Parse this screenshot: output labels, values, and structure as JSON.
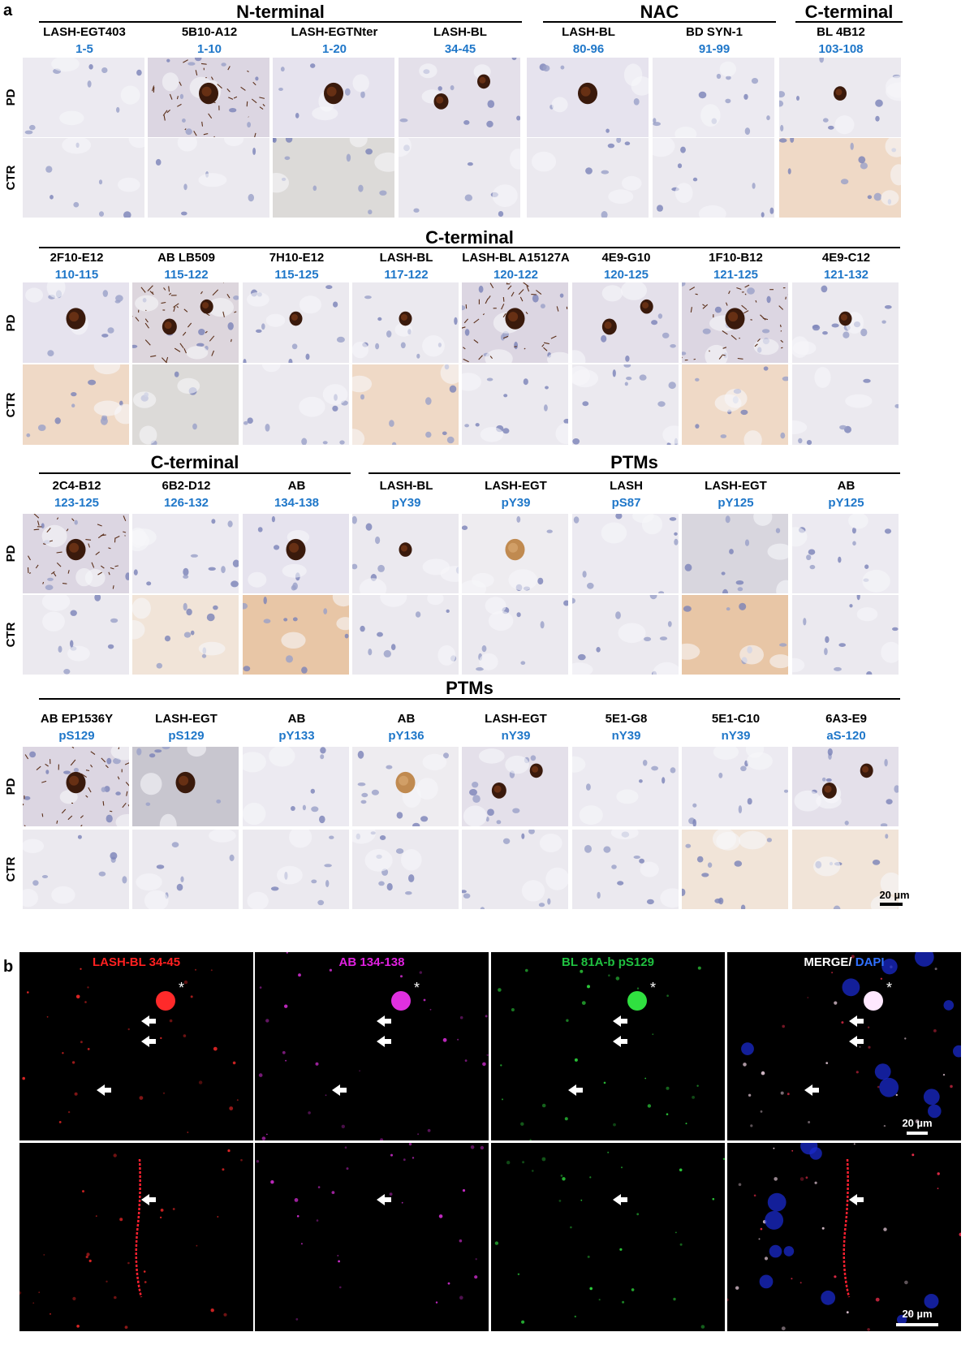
{
  "panel_a": {
    "letter": "a",
    "row_labels": {
      "pd": "PD",
      "ctr": "CTR"
    },
    "blocks": [
      {
        "groups": [
          {
            "title": "N-terminal",
            "span": [
              0,
              3
            ]
          },
          {
            "title": "NAC",
            "span": [
              4,
              5
            ]
          },
          {
            "title": "C-terminal",
            "span": [
              6,
              6
            ]
          }
        ],
        "columns": [
          {
            "name": "LASH-EGT403",
            "epitope": "1-5",
            "pd": "none",
            "ctr": "light"
          },
          {
            "name": "5B10-A12",
            "epitope": "1-10",
            "pd": "body-neurites",
            "ctr": "light"
          },
          {
            "name": "LASH-EGTNter",
            "epitope": "1-20",
            "pd": "body",
            "ctr": "grey"
          },
          {
            "name": "LASH-BL",
            "epitope": "34-45",
            "pd": "multi",
            "ctr": "light"
          },
          {
            "name": "LASH-BL",
            "epitope": "80-96",
            "pd": "body",
            "ctr": "light"
          },
          {
            "name": "BD SYN-1",
            "epitope": "91-99",
            "pd": "none",
            "ctr": "light"
          },
          {
            "name": "BL 4B12",
            "epitope": "103-108",
            "pd": "body-small",
            "ctr": "tan"
          }
        ]
      },
      {
        "groups": [
          {
            "title": "C-terminal",
            "span": [
              0,
              7
            ]
          }
        ],
        "columns": [
          {
            "name": "2F10-E12",
            "epitope": "110-115",
            "pd": "body",
            "ctr": "tan"
          },
          {
            "name": "AB LB509",
            "epitope": "115-122",
            "pd": "multi-neurites",
            "ctr": "grey"
          },
          {
            "name": "7H10-E12",
            "epitope": "115-125",
            "pd": "body-small",
            "ctr": "light"
          },
          {
            "name": "LASH-BL",
            "epitope": "117-122",
            "pd": "body-small",
            "ctr": "tan"
          },
          {
            "name": "LASH-BL A15127A",
            "epitope": "120-122",
            "pd": "body-neurites",
            "ctr": "light"
          },
          {
            "name": "4E9-G10",
            "epitope": "120-125",
            "pd": "multi",
            "ctr": "light"
          },
          {
            "name": "1F10-B12",
            "epitope": "121-125",
            "pd": "body-neurites",
            "ctr": "tan"
          },
          {
            "name": "4E9-C12",
            "epitope": "121-132",
            "pd": "body-small",
            "ctr": "light"
          }
        ]
      },
      {
        "groups": [
          {
            "title": "C-terminal",
            "span": [
              0,
              2
            ]
          },
          {
            "title": "PTMs",
            "span": [
              3,
              7
            ]
          }
        ],
        "columns": [
          {
            "name": "2C4-B12",
            "epitope": "123-125",
            "pd": "body-neurites",
            "ctr": "light"
          },
          {
            "name": "6B2-D12",
            "epitope": "126-132",
            "pd": "none",
            "ctr": "tan-light"
          },
          {
            "name": "AB",
            "epitope": "134-138",
            "pd": "body",
            "ctr": "tan-dark"
          },
          {
            "name": "LASH-BL",
            "epitope": "pY39",
            "pd": "body-small",
            "ctr": "light"
          },
          {
            "name": "LASH-EGT",
            "epitope": "pY39",
            "pd": "body-faint",
            "ctr": "light"
          },
          {
            "name": "LASH",
            "epitope": "pS87",
            "pd": "none",
            "ctr": "light"
          },
          {
            "name": "LASH-EGT",
            "epitope": "pY125",
            "pd": "grey-nuclei",
            "ctr": "tan-dark"
          },
          {
            "name": "AB",
            "epitope": "pY125",
            "pd": "none",
            "ctr": "light"
          }
        ]
      },
      {
        "groups": [
          {
            "title": "PTMs",
            "span": [
              0,
              7
            ]
          }
        ],
        "columns": [
          {
            "name": "AB EP1536Y",
            "epitope": "pS129",
            "pd": "body-neurites",
            "ctr": "light"
          },
          {
            "name": "LASH-EGT",
            "epitope": "pS129",
            "pd": "body-grey",
            "ctr": "light"
          },
          {
            "name": "AB",
            "epitope": "pY133",
            "pd": "none",
            "ctr": "light"
          },
          {
            "name": "AB",
            "epitope": "pY136",
            "pd": "body-faint",
            "ctr": "light"
          },
          {
            "name": "LASH-EGT",
            "epitope": "nY39",
            "pd": "multi",
            "ctr": "light"
          },
          {
            "name": "5E1-G8",
            "epitope": "nY39",
            "pd": "none",
            "ctr": "light"
          },
          {
            "name": "5E1-C10",
            "epitope": "nY39",
            "pd": "none",
            "ctr": "tan-light"
          },
          {
            "name": "6A3-E9",
            "epitope": "aS-120",
            "pd": "multi",
            "ctr": "tan-light"
          }
        ]
      }
    ],
    "scale_bar": "20 µm"
  },
  "panel_b": {
    "letter": "b",
    "channels": [
      {
        "parts": [
          {
            "text": "LASH-BL 34-45",
            "color": "#ff2020"
          }
        ],
        "color": "#ff2a2a"
      },
      {
        "parts": [
          {
            "text": "AB",
            "color": "#e020e0"
          },
          {
            "text": " 134-138",
            "color": "#e020e0"
          }
        ],
        "color": "#e030e0"
      },
      {
        "parts": [
          {
            "text": "BL 81A-b pS129",
            "color": "#20c040"
          }
        ],
        "color": "#30e040"
      },
      {
        "parts": [
          {
            "text": "MERGE/",
            "color": "#ffffff"
          },
          {
            "text": " DAPI",
            "color": "#3070ff"
          }
        ],
        "color": "#ffffff"
      }
    ],
    "asterisk": "*",
    "scale_bar": "20 µm"
  }
}
